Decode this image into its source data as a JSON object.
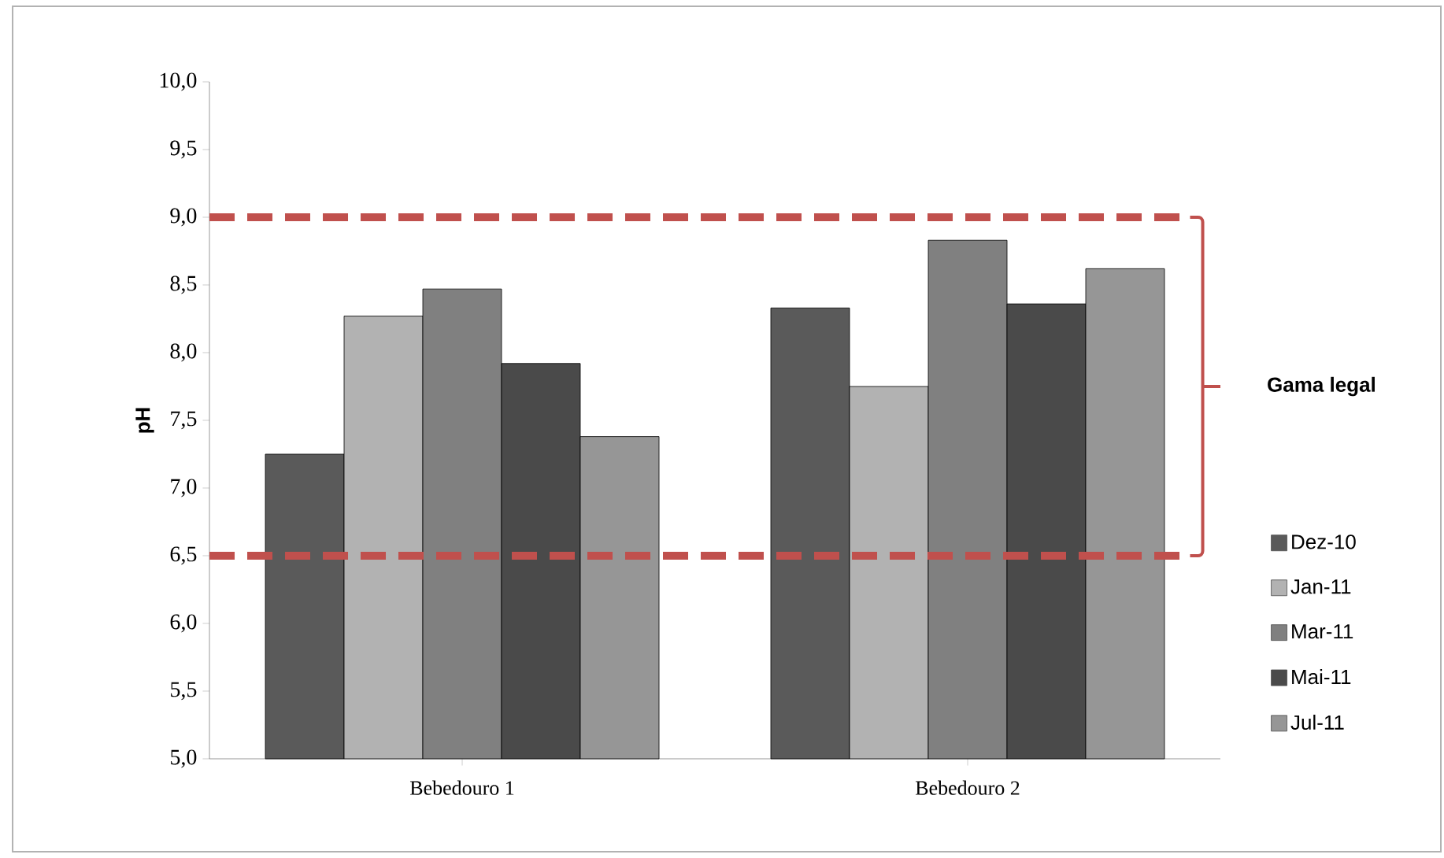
{
  "chart_data": {
    "type": "bar",
    "ylabel": "pH",
    "categories": [
      "Bebedouro 1",
      "Bebedouro 2"
    ],
    "series": [
      {
        "name": "Dez-10",
        "color": "#5a5a5a",
        "values": [
          7.25,
          8.33
        ]
      },
      {
        "name": "Jan-11",
        "color": "#b2b2b2",
        "values": [
          8.27,
          7.75
        ]
      },
      {
        "name": "Mar-11",
        "color": "#808080",
        "values": [
          8.47,
          8.83
        ]
      },
      {
        "name": "Mai-11",
        "color": "#4a4a4a",
        "values": [
          7.92,
          8.36
        ]
      },
      {
        "name": "Jul-11",
        "color": "#969696",
        "values": [
          7.38,
          8.62
        ]
      }
    ],
    "ylim": [
      5,
      10
    ],
    "yticks": [
      {
        "value": 5,
        "label": "5,0"
      },
      {
        "value": 5.5,
        "label": "5,5"
      },
      {
        "value": 6,
        "label": "6,0"
      },
      {
        "value": 6.5,
        "label": "6,5"
      },
      {
        "value": 7,
        "label": "7,0"
      },
      {
        "value": 7.5,
        "label": "7,5"
      },
      {
        "value": 8,
        "label": "8,0"
      },
      {
        "value": 8.5,
        "label": "8,5"
      },
      {
        "value": 9,
        "label": "9,0"
      },
      {
        "value": 9.5,
        "label": "9,5"
      },
      {
        "value": 10,
        "label": "10,0"
      }
    ],
    "ref_lines": [
      {
        "axis": "y",
        "value": 9,
        "color": "#c0504d",
        "line_style": "dashed"
      },
      {
        "axis": "y",
        "value": 6.5,
        "color": "#c0504d",
        "line_style": "dashed"
      }
    ],
    "annotations": [
      "Gama legal"
    ],
    "grid": false,
    "legend": "right"
  }
}
